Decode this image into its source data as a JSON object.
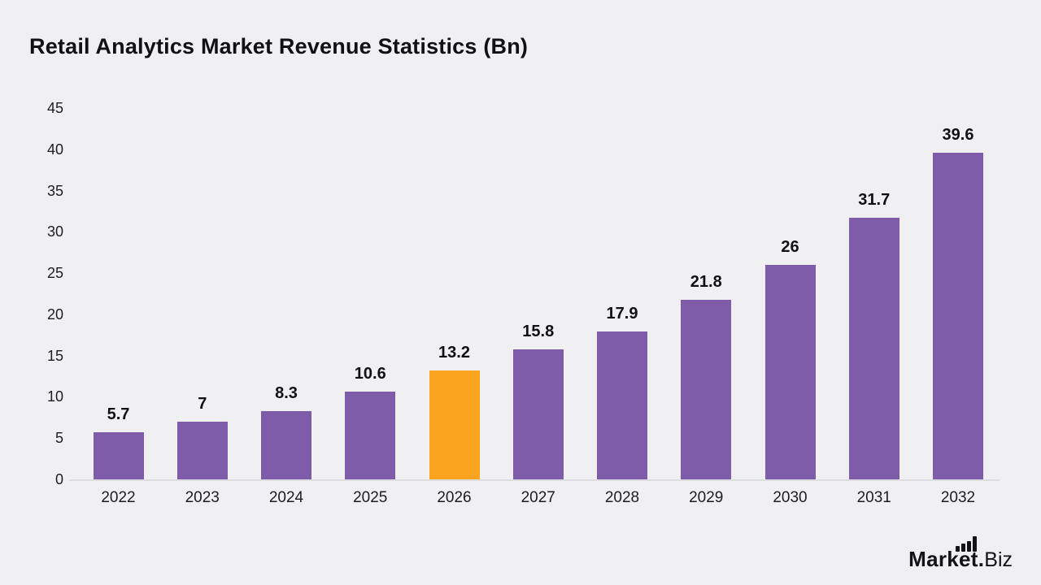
{
  "page": {
    "background_color": "#F0F0F2",
    "text_color": "#111114"
  },
  "header": {
    "title": "Retail Analytics Market Revenue Statistics (Bn)"
  },
  "chart_data": {
    "type": "bar",
    "title": "Retail Analytics Market Revenue Statistics (Bn)",
    "categories": [
      "2022",
      "2023",
      "2024",
      "2025",
      "2026",
      "2027",
      "2028",
      "2029",
      "2030",
      "2031",
      "2032"
    ],
    "values": [
      5.7,
      7,
      8.3,
      10.6,
      13.2,
      15.8,
      17.9,
      21.8,
      26,
      31.7,
      39.6
    ],
    "value_labels": [
      "5.7",
      "7",
      "8.3",
      "10.6",
      "13.2",
      "15.8",
      "17.9",
      "21.8",
      "26",
      "31.7",
      "39.6"
    ],
    "xlabel": "",
    "ylabel": "",
    "yticks": [
      0,
      5,
      10,
      15,
      20,
      25,
      30,
      35,
      40,
      45
    ],
    "ylim": [
      0,
      45
    ],
    "grid": false,
    "legend_position": "none",
    "bar_color": "#7E5CAA",
    "highlight_color": "#FAA41F",
    "highlight_index": 4,
    "value_label_color": "#111114",
    "axis_line_color": "#DDDDE0"
  },
  "branding": {
    "logo_bold": "Market.",
    "logo_light": "Biz",
    "logo_icon": "ascending-bar-chart-icon"
  }
}
